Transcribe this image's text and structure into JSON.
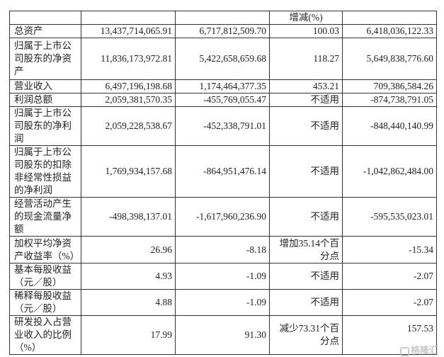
{
  "header": [
    "",
    "",
    "",
    "增减(%)",
    ""
  ],
  "rows": [
    {
      "label": "总资产",
      "c1": "13,437,714,065.91",
      "c2": "6,717,812,509.70",
      "change": "100.03",
      "c4": "6,418,036,122.33"
    },
    {
      "label": "归属于上市公司股东的净资产",
      "c1": "11,836,173,972.81",
      "c2": "5,422,658,659.68",
      "change": "118.27",
      "c4": "5,649,838,776.60"
    },
    {
      "label": "营业收入",
      "c1": "6,497,196,198.68",
      "c2": "1,174,464,377.35",
      "change": "453.21",
      "c4": "709,386,584.26"
    },
    {
      "label": "利润总额",
      "c1": "2,059,381,570.35",
      "c2": "-455,769,055.47",
      "change": "不适用",
      "c4": "-874,738,791.05"
    },
    {
      "label": "归属于上市公司股东的净利润",
      "c1": "2,059,228,538.67",
      "c2": "-452,338,791.01",
      "change": "不适用",
      "c4": "-848,440,140.99"
    },
    {
      "label": "归属于上市公司股东的扣除非经常性损益的净利润",
      "c1": "1,769,934,157.68",
      "c2": "-864,951,476.14",
      "change": "不适用",
      "c4": "-1,042,862,484.00"
    },
    {
      "label": "经营活动产生的现金流量净额",
      "c1": "-498,398,137.01",
      "c2": "-1,617,960,236.90",
      "change": "不适用",
      "c4": "-595,535,023.01"
    },
    {
      "label": "加权平均净资产收益率（%）",
      "c1": "26.96",
      "c2": "-8.18",
      "change": "增加35.14个百分点",
      "c4": "-15.34"
    },
    {
      "label": "基本每股收益（元／股）",
      "c1": "4.93",
      "c2": "-1.09",
      "change": "不适用",
      "c4": "-2.07"
    },
    {
      "label": "稀释每股收益（元／股）",
      "c1": "4.88",
      "c2": "-1.09",
      "change": "不适用",
      "c4": "-2.07"
    },
    {
      "label": "研发投入占营业收入的比例（%）",
      "c1": "17.99",
      "c2": "91.30",
      "change": "减少73.31个百分点",
      "c4": "157.53"
    }
  ],
  "watermark": "格隆汇"
}
